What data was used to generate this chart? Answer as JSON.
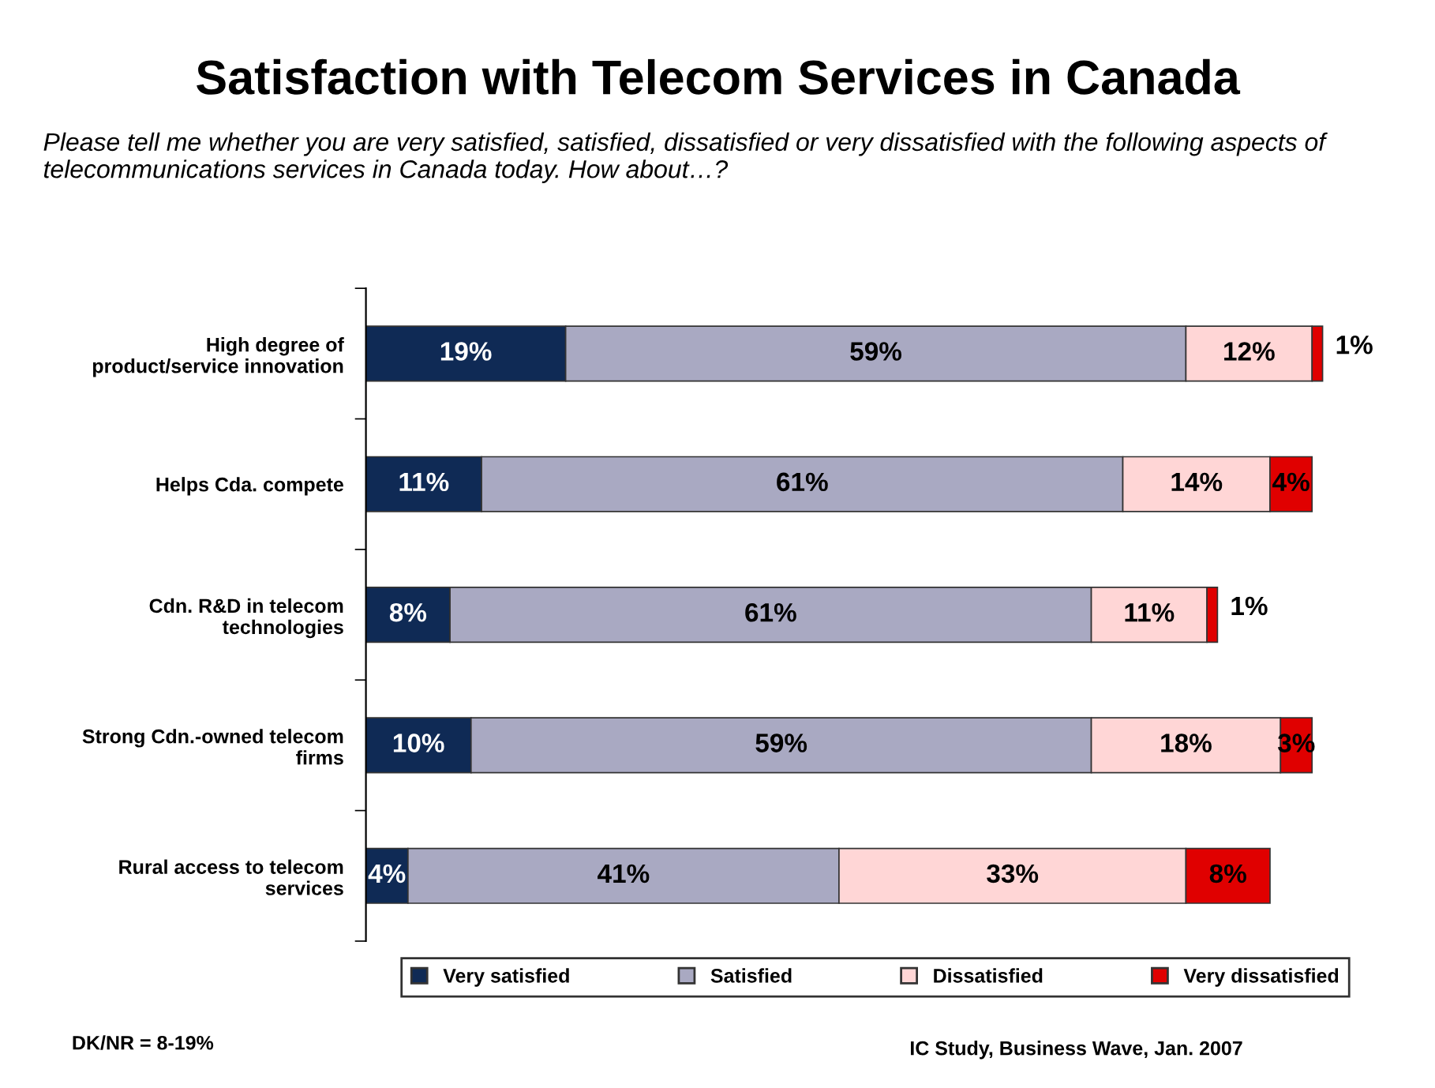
{
  "chart_data": {
    "type": "bar",
    "orientation": "horizontal",
    "stacked": true,
    "title": "Satisfaction with Telecom Services in Canada",
    "subtitle": "Please tell me whether you are very satisfied, satisfied, dissatisfied or very dissatisfied with the following aspects of telecommunications services in Canada today. How about…?",
    "categories": [
      "High degree of\nproduct/service innovation",
      "Helps Cda. compete",
      "Cdn. R&D in telecom\ntechnologies",
      "Strong Cdn.-owned telecom\nfirms",
      "Rural access to telecom\nservices"
    ],
    "series": [
      {
        "name": "Very satisfied",
        "color": "#0f2a55",
        "values": [
          19,
          11,
          8,
          10,
          4
        ],
        "value_labels": [
          "19%",
          "11%",
          "8%",
          "10%",
          "4%"
        ]
      },
      {
        "name": "Satisfied",
        "color": "#a9a9c2",
        "values": [
          59,
          61,
          61,
          59,
          41
        ],
        "value_labels": [
          "59%",
          "61%",
          "61%",
          "59%",
          "41%"
        ]
      },
      {
        "name": "Dissatisfied",
        "color": "#ffd6d6",
        "values": [
          12,
          14,
          11,
          18,
          33
        ],
        "value_labels": [
          "12%",
          "14%",
          "11%",
          "18%",
          "33%"
        ]
      },
      {
        "name": "Very dissatisfied",
        "color": "#e00000",
        "values": [
          1,
          4,
          1,
          3,
          8
        ],
        "value_labels": [
          "1%",
          "4%",
          "1%",
          "3%",
          "8%"
        ]
      }
    ],
    "legend": "bottom",
    "grid": false,
    "annotations": [
      "DK/NR = 8-19%",
      "IC Study, Business Wave, Jan. 2007"
    ]
  }
}
